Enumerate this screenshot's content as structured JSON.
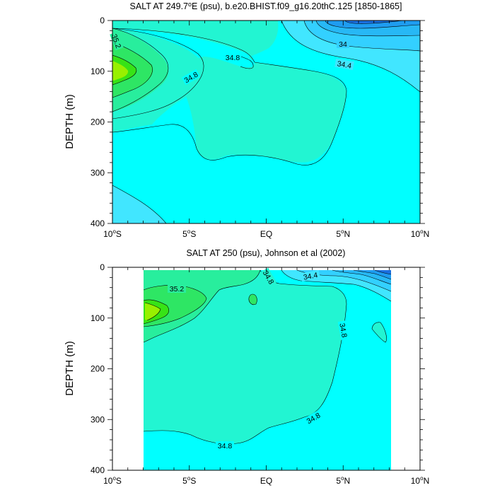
{
  "chart_data": [
    {
      "type": "contour",
      "title": "SALT AT 249.7°E (psu), b.e20.BHIST.f09_g16.20thC.125 [1850-1865]",
      "title_parts": {
        "pre": "SALT AT 249.7",
        "sup": "o",
        "post": "E (psu), b.e20.BHIST.f09_g16.20thC.125 [1850-1865]"
      },
      "ylabel": "DEPTH (m)",
      "xlabel": "",
      "x_range": [
        -10,
        10
      ],
      "y_range": [
        0,
        400
      ],
      "y_reversed": true,
      "x_ticks": [
        {
          "value": -10,
          "num": "10",
          "sup": "o",
          "suffix": "S"
        },
        {
          "value": -5,
          "num": "5",
          "sup": "o",
          "suffix": "S"
        },
        {
          "value": 0,
          "num": "EQ",
          "sup": "",
          "suffix": ""
        },
        {
          "value": 5,
          "num": "5",
          "sup": "o",
          "suffix": "N"
        },
        {
          "value": 10,
          "num": "10",
          "sup": "o",
          "suffix": "N"
        }
      ],
      "y_ticks": [
        0,
        100,
        200,
        300,
        400
      ],
      "data_extent_x": [
        -10,
        10
      ],
      "fill_levels": [
        {
          "range": "<33.8",
          "color": "#1a6fe0"
        },
        {
          "range": "33.8-34.0",
          "color": "#1e9cf0"
        },
        {
          "range": "34.0-34.2",
          "color": "#27b8f5"
        },
        {
          "range": "34.2-34.4",
          "color": "#33d0ff"
        },
        {
          "range": "34.4-34.6",
          "color": "#41e6ff"
        },
        {
          "range": "34.6-34.8",
          "color": "#00ffff"
        },
        {
          "range": "34.8-35.0",
          "color": "#22f5d2"
        },
        {
          "range": "35.0-35.2",
          "color": "#28ee9d"
        },
        {
          "range": "35.2-35.4",
          "color": "#2ee664"
        },
        {
          "range": "35.4-35.6",
          "color": "#37e316"
        },
        {
          "range": ">35.6",
          "color": "#98f000"
        }
      ],
      "contour_labels": [
        "35.2",
        "34.8",
        "34.8",
        "34",
        "34.4"
      ]
    },
    {
      "type": "contour",
      "title": "SALT AT 250 (psu), Johnson et al (2002)",
      "title_parts": {
        "pre": "SALT AT 250 (psu), Johnson et al (2002)",
        "sup": "",
        "post": ""
      },
      "ylabel": "DEPTH (m)",
      "xlabel": "",
      "x_range": [
        -10,
        10
      ],
      "y_range": [
        0,
        400
      ],
      "y_reversed": true,
      "x_ticks": [
        {
          "value": -10,
          "num": "10",
          "sup": "o",
          "suffix": "S"
        },
        {
          "value": -5,
          "num": "5",
          "sup": "o",
          "suffix": "S"
        },
        {
          "value": 0,
          "num": "EQ",
          "sup": "",
          "suffix": ""
        },
        {
          "value": 5,
          "num": "5",
          "sup": "o",
          "suffix": "N"
        },
        {
          "value": 10,
          "num": "10",
          "sup": "o",
          "suffix": "N"
        }
      ],
      "y_ticks": [
        0,
        100,
        200,
        300,
        400
      ],
      "data_extent_x": [
        -8,
        8.2
      ],
      "data_extent_y": [
        5,
        400
      ],
      "fill_levels": [
        {
          "range": "<33.8",
          "color": "#1a6fe0"
        },
        {
          "range": "33.8-34.0",
          "color": "#1e9cf0"
        },
        {
          "range": "34.0-34.2",
          "color": "#27b8f5"
        },
        {
          "range": "34.2-34.4",
          "color": "#33d0ff"
        },
        {
          "range": "34.4-34.6",
          "color": "#41e6ff"
        },
        {
          "range": "34.6-34.8",
          "color": "#00ffff"
        },
        {
          "range": "34.8-35.0",
          "color": "#22f5d2"
        },
        {
          "range": "35.0-35.2",
          "color": "#28ee9d"
        },
        {
          "range": "35.2-35.4",
          "color": "#2ee664"
        },
        {
          "range": "35.4-35.6",
          "color": "#37e316"
        },
        {
          "range": ">35.6",
          "color": "#98f000"
        }
      ],
      "contour_labels": [
        "34.8",
        "34.4",
        "35.2",
        "34.8",
        "34.8",
        "34.8"
      ]
    }
  ]
}
